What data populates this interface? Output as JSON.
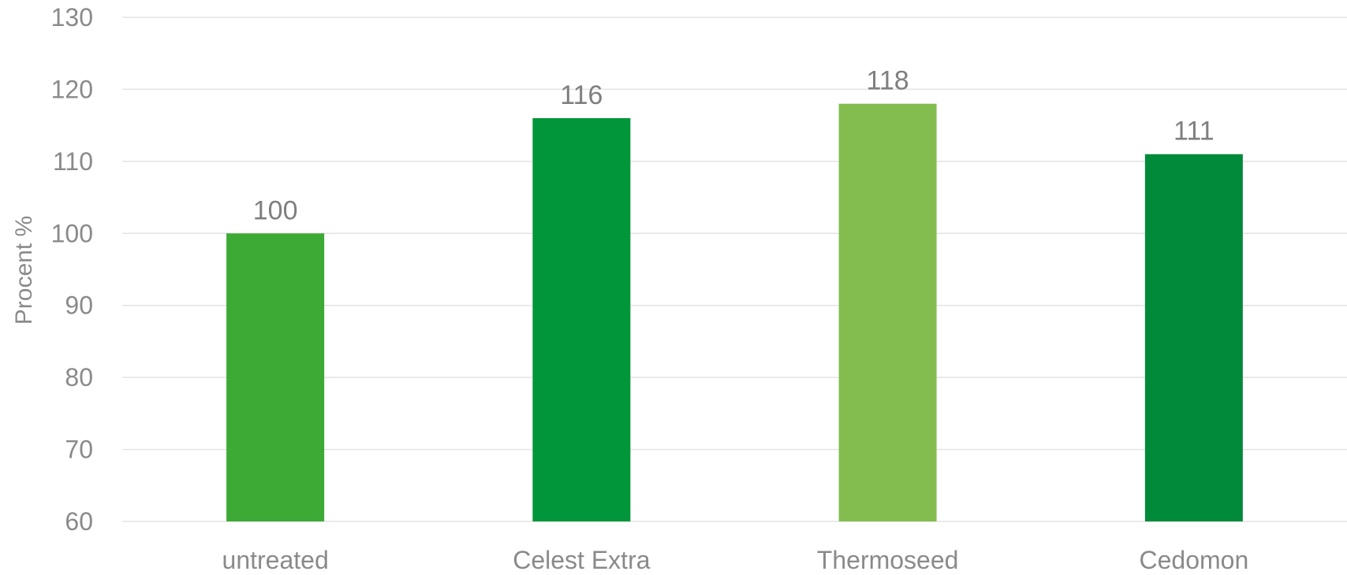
{
  "chart_data": {
    "type": "bar",
    "title": "",
    "xlabel": "",
    "ylabel": "Procent %",
    "categories": [
      "untreated",
      "Celest Extra",
      "Thermoseed",
      "Cedomon"
    ],
    "values": [
      100,
      116,
      118,
      111
    ],
    "data_labels": [
      "100",
      "116",
      "118",
      "111"
    ],
    "bar_colors": [
      "#3caa35",
      "#009639",
      "#84bd4f",
      "#008a3a"
    ],
    "ylim": [
      60,
      130
    ],
    "yticks": [
      60,
      70,
      80,
      90,
      100,
      110,
      120,
      130
    ],
    "grid": true,
    "legend": "none"
  },
  "colors": {
    "grid": "#e3e3e3",
    "text": "#8a8a8a"
  }
}
